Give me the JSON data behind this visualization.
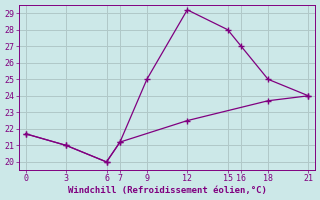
{
  "xlabel": "Windchill (Refroidissement éolien,°C)",
  "line1_x": [
    0,
    3,
    6,
    7,
    9,
    12,
    15,
    16,
    18,
    21
  ],
  "line1_y": [
    21.7,
    21.0,
    20.0,
    21.2,
    25.0,
    29.2,
    28.0,
    27.0,
    25.0,
    24.0
  ],
  "line2_x": [
    0,
    3,
    6,
    7,
    12,
    18,
    21
  ],
  "line2_y": [
    21.7,
    21.0,
    20.0,
    21.2,
    22.5,
    23.7,
    24.0
  ],
  "line_color": "#800080",
  "bg_color": "#cce8e8",
  "grid_color": "#b0c8c8",
  "xlim": [
    -0.5,
    21.5
  ],
  "ylim": [
    19.5,
    29.5
  ],
  "xticks": [
    0,
    3,
    6,
    7,
    9,
    12,
    15,
    16,
    18,
    21
  ],
  "yticks": [
    20,
    21,
    22,
    23,
    24,
    25,
    26,
    27,
    28,
    29
  ],
  "tick_fontsize": 6.0,
  "xlabel_fontsize": 6.5
}
